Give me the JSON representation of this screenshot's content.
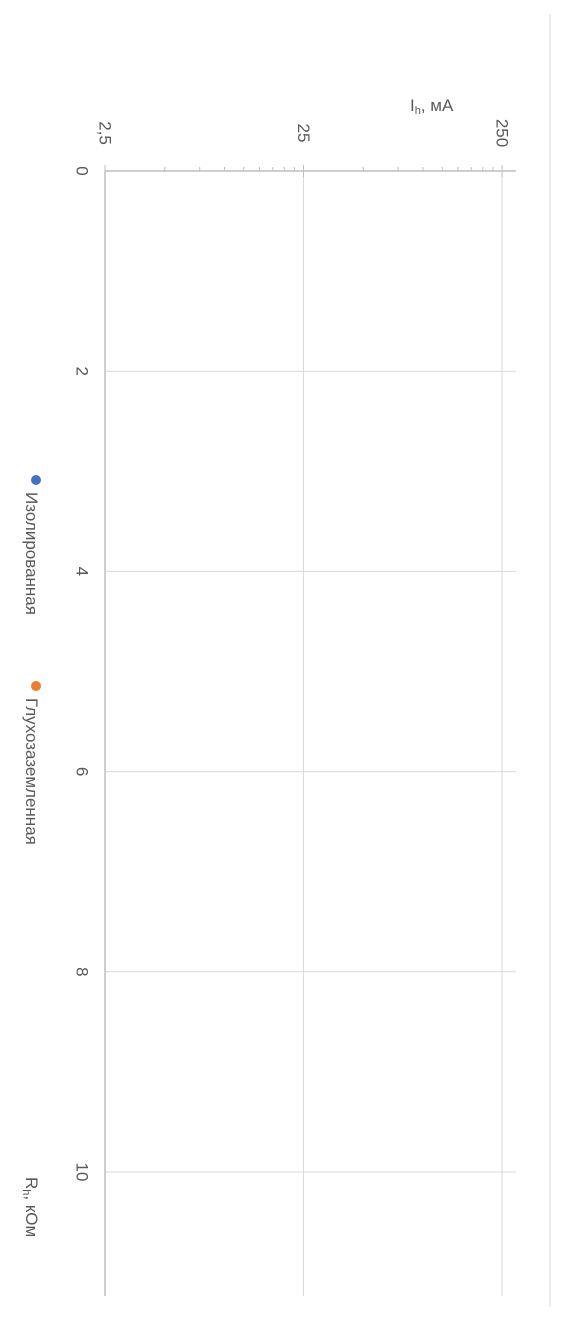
{
  "chart_data": {
    "type": "scatter",
    "title": "",
    "xlabel": "Rh, кОм",
    "ylabel": "Ih, мА",
    "xlabel_parts": {
      "main": "R",
      "sub": "h",
      "rest": ", кОм"
    },
    "ylabel_parts": {
      "main": "I",
      "sub": "h",
      "rest": ", мА"
    },
    "xlim": [
      0,
      11
    ],
    "x_ticks": [
      0,
      2,
      4,
      6,
      8,
      10
    ],
    "x_tick_labels": [
      "0",
      "2",
      "4",
      "6",
      "8",
      "10"
    ],
    "ylim": [
      2.5,
      250
    ],
    "y_scale": "log",
    "y_ticks": [
      2.5,
      25,
      250
    ],
    "y_tick_labels": [
      "2,5",
      "25",
      "250"
    ],
    "grid": true,
    "legend_position": "left",
    "series": [
      {
        "name": "Изолированная",
        "color": "#4472C4",
        "x": [],
        "y": []
      },
      {
        "name": "Глухозаземленная",
        "color": "#ED7D31",
        "x": [],
        "y": []
      }
    ]
  }
}
